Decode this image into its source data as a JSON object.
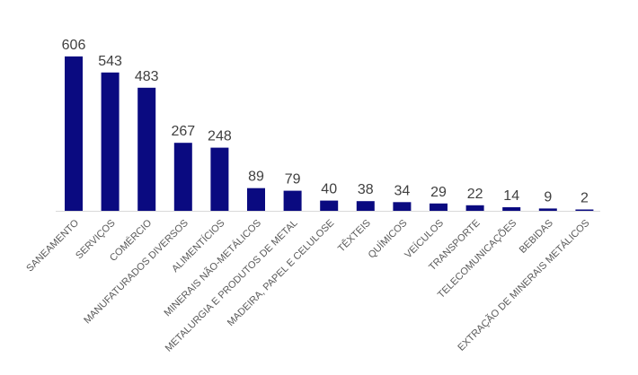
{
  "chart_data": {
    "type": "bar",
    "title": "",
    "xlabel": "",
    "ylabel": "",
    "ylim": [
      0,
      640
    ],
    "grid": false,
    "legend": "none",
    "bar_color": "#0A0A80",
    "axis_color": "#D9D9D9",
    "categories": [
      "SANEAMENTO",
      "SERVIÇOS",
      "COMÉRCIO",
      "MANUFATURADOS DIVERSOS",
      "ALIMENTÍCIOS",
      "MINERAIS NÃO-METÁLICOS",
      "METALURGIA E PRODUTOS DE METAL",
      "MADEIRA, PAPEL E CELULOSE",
      "TÊXTEIS",
      "QUÍMICOS",
      "VEÍCULOS",
      "TRANSPORTE",
      "TELECOMUNICAÇÕES",
      "BEBIDAS",
      "EXTRAÇÃO DE MINERAIS METÁLICOS"
    ],
    "values": [
      606,
      543,
      483,
      267,
      248,
      89,
      79,
      40,
      38,
      34,
      29,
      22,
      14,
      9,
      2
    ]
  }
}
